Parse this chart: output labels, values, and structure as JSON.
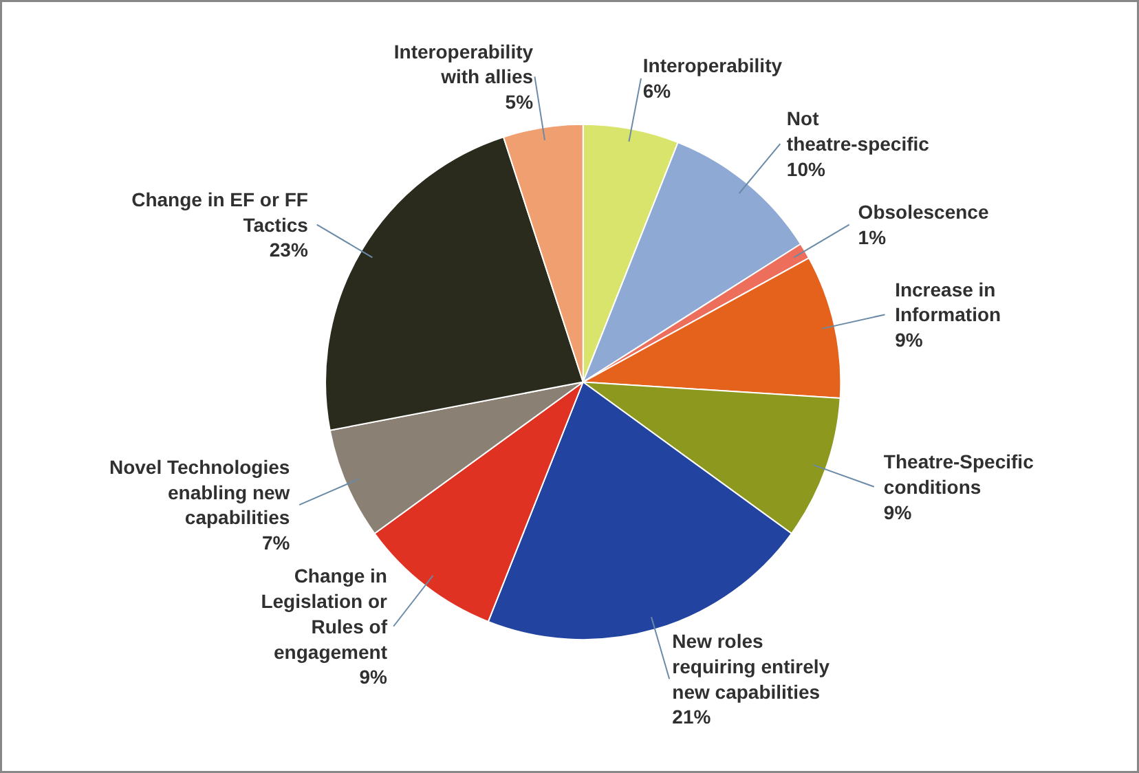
{
  "chart_data": {
    "type": "pie",
    "categories": [
      "Interoperability",
      "Not theatre-specific",
      "Obsolescence",
      "Increase in Information",
      "Theatre-Specific conditions",
      "New roles requiring entirely new capabilities",
      "Change in Legislation or Rules of engagement",
      "Novel Technologies enabling new capabilities",
      "Change in EF or FF Tactics",
      "Interoperability with allies"
    ],
    "values": [
      6,
      10,
      1,
      9,
      9,
      21,
      9,
      7,
      23,
      5
    ],
    "colors": [
      "#d8e46c",
      "#8eaad4",
      "#ee6e5c",
      "#e4621c",
      "#8c981e",
      "#2244a0",
      "#e03222",
      "#8a8074",
      "#2a2b1c",
      "#f0a070"
    ],
    "value_labels": [
      "6%",
      "10%",
      "1%",
      "9%",
      "9%",
      "21%",
      "9%",
      "7%",
      "23%",
      "5%"
    ]
  }
}
